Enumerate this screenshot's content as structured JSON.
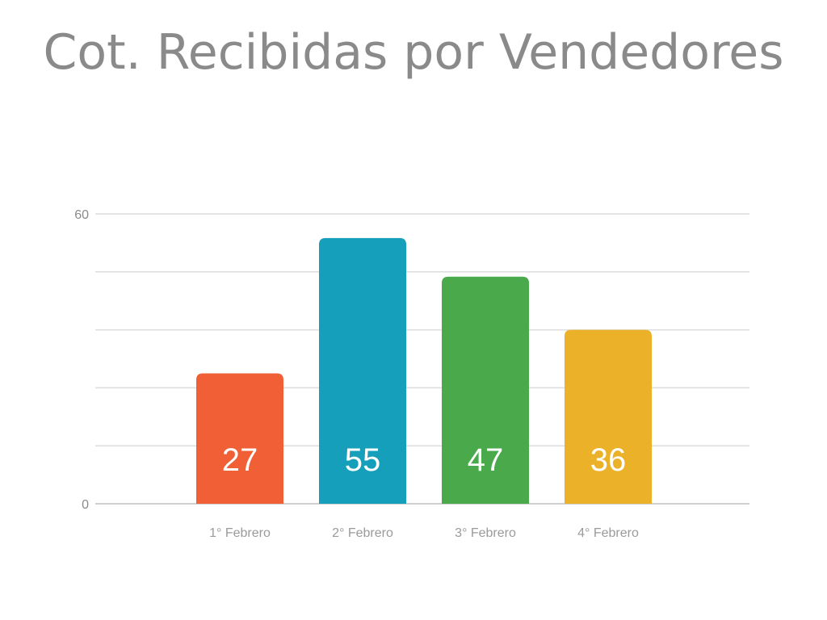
{
  "chart_data": {
    "type": "bar",
    "title": "Cot. Recibidas por Vendedores",
    "categories": [
      "1° Febrero",
      "2° Febrero",
      "3° Febrero",
      "4° Febrero"
    ],
    "values": [
      27,
      55,
      47,
      36
    ],
    "colors": [
      "#f05f35",
      "#169fba",
      "#4aaa4b",
      "#ebb128"
    ],
    "ylim": [
      0,
      60
    ],
    "yticks": [
      "0",
      "60"
    ],
    "grid": true,
    "data_labels": [
      "27",
      "55",
      "47",
      "36"
    ]
  }
}
